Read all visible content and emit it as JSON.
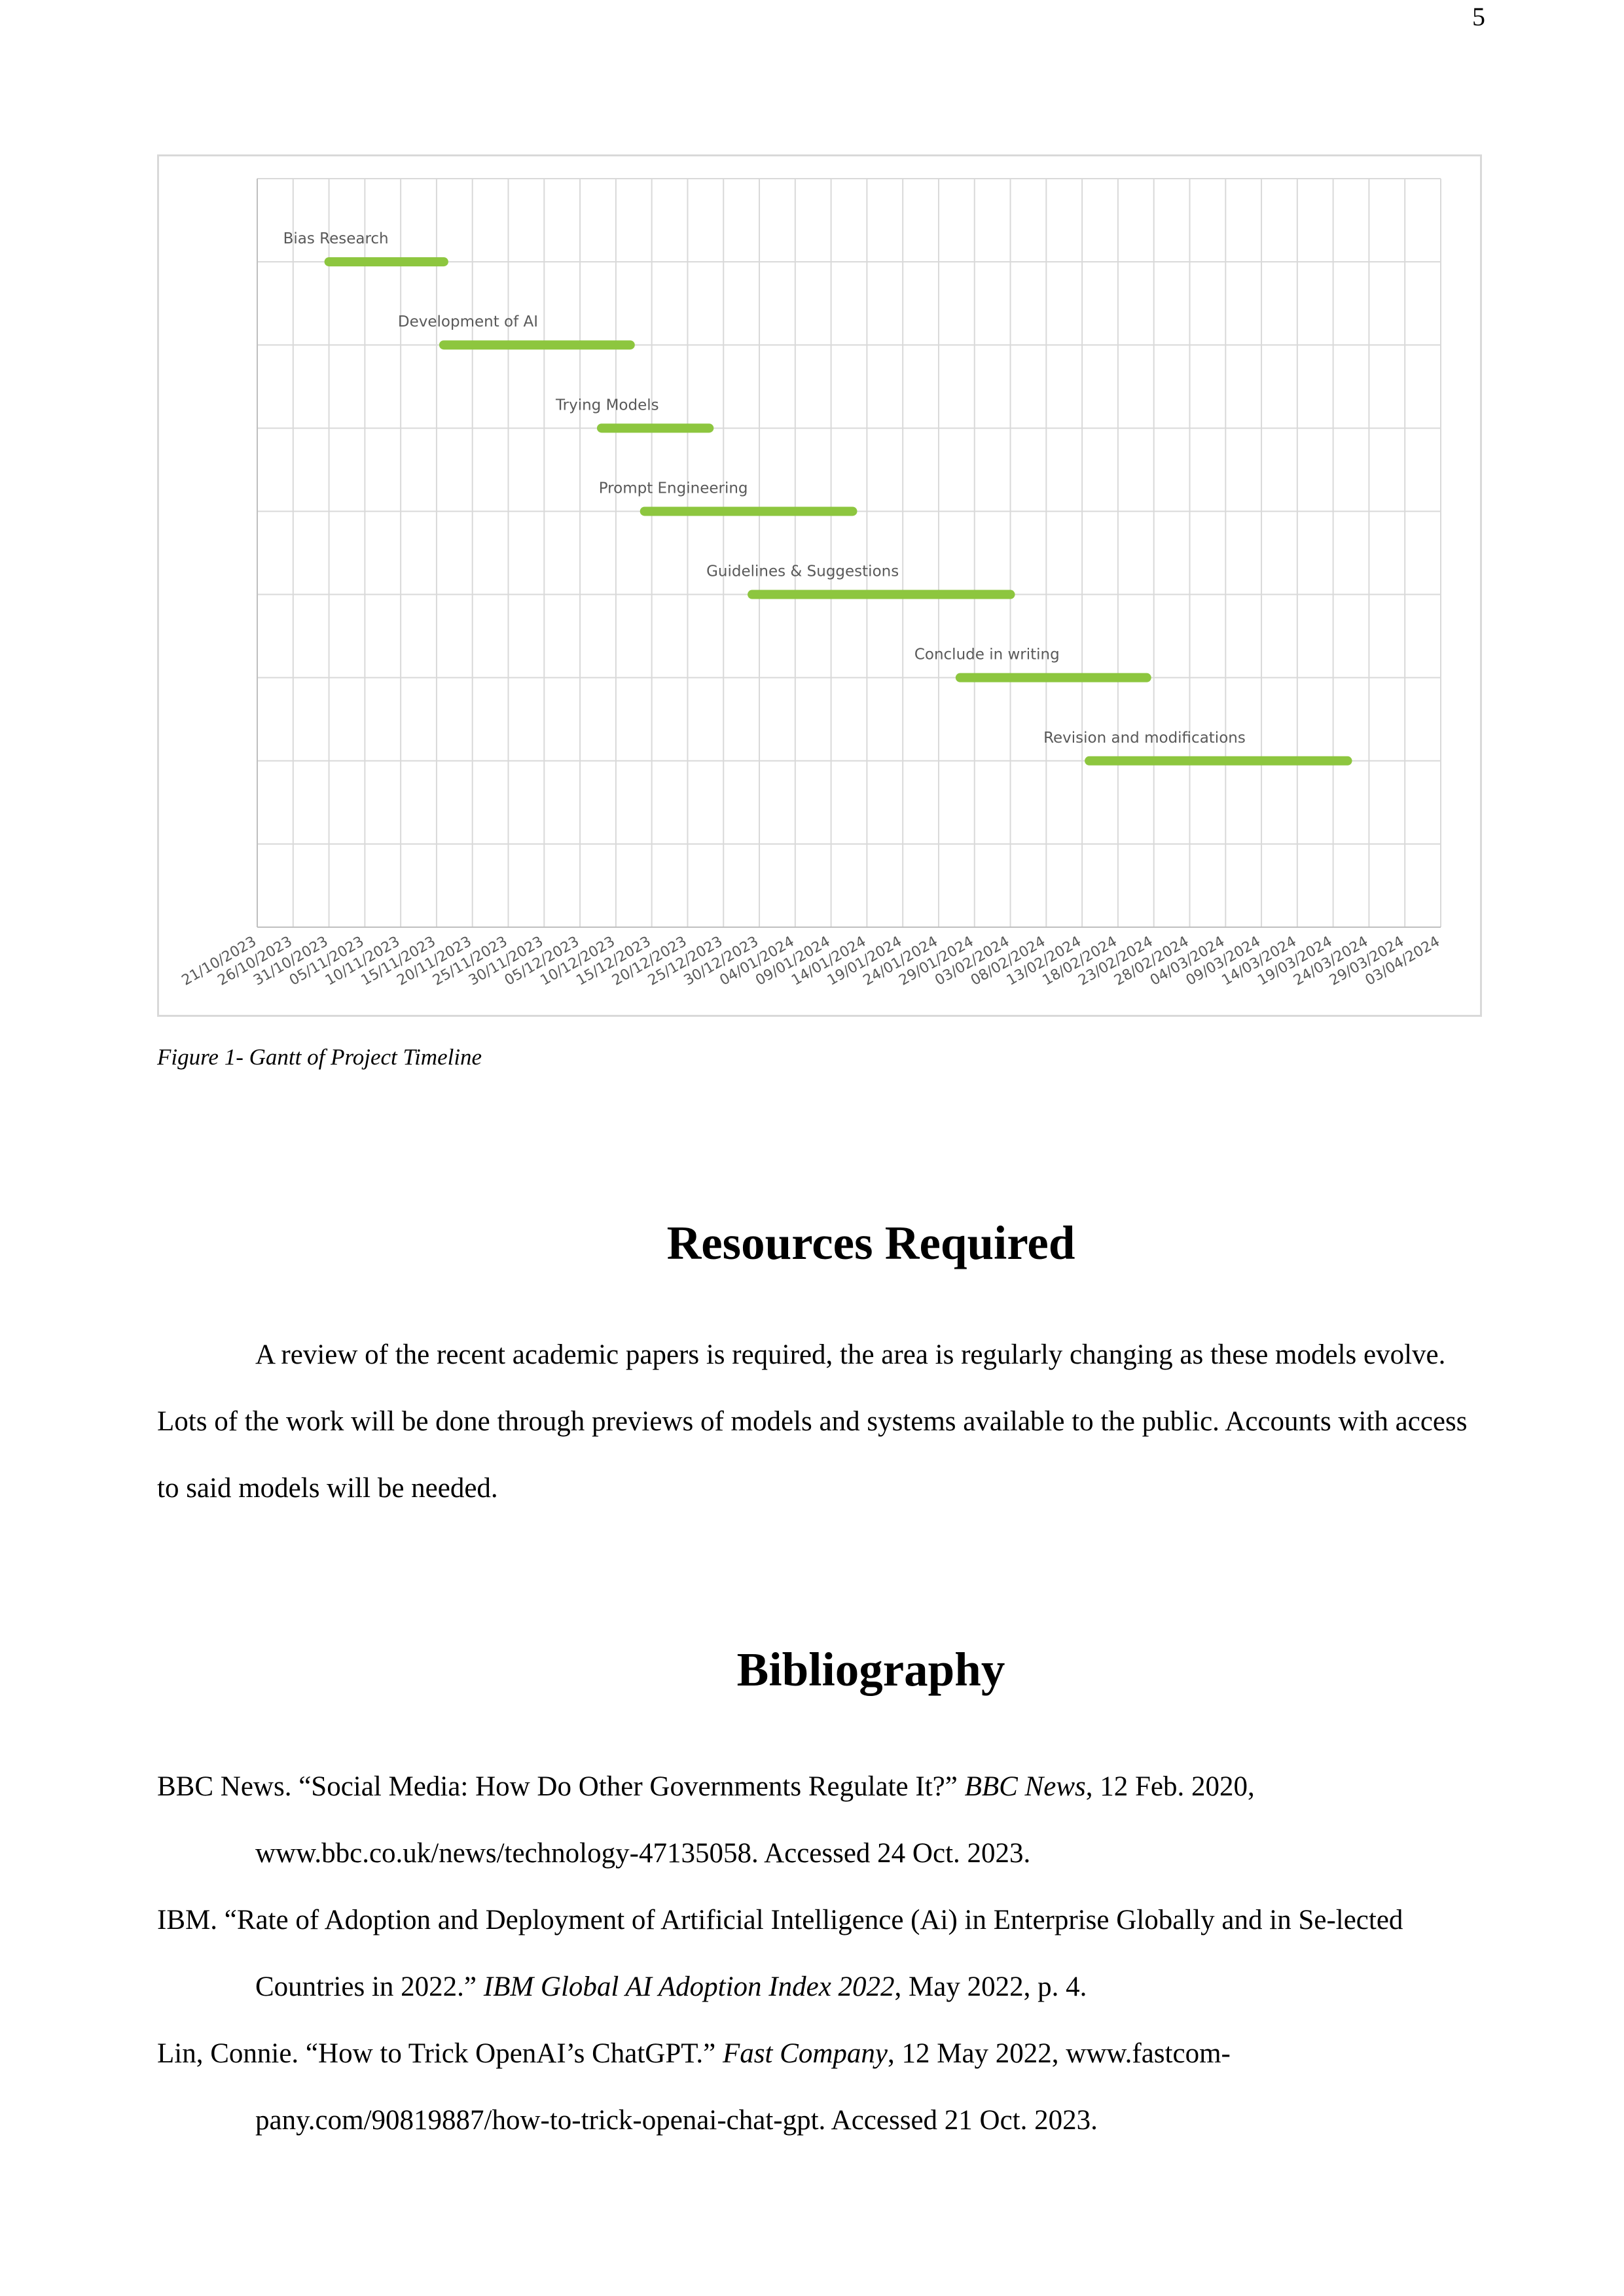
{
  "page": {
    "number": "5"
  },
  "figure": {
    "caption": "Figure 1- Gantt of Project Timeline"
  },
  "chart_data": {
    "type": "gantt",
    "title": "",
    "bar_color": "#8dc63f",
    "grid": true,
    "x_ticks": [
      "21/10/2023",
      "26/10/2023",
      "31/10/2023",
      "05/11/2023",
      "10/11/2023",
      "15/11/2023",
      "20/11/2023",
      "25/11/2023",
      "30/11/2023",
      "05/12/2023",
      "10/12/2023",
      "15/12/2023",
      "20/12/2023",
      "25/12/2023",
      "30/12/2023",
      "04/01/2024",
      "09/01/2024",
      "14/01/2024",
      "19/01/2024",
      "24/01/2024",
      "29/01/2024",
      "03/02/2024",
      "08/02/2024",
      "13/02/2024",
      "18/02/2024",
      "23/02/2024",
      "28/02/2024",
      "04/03/2024",
      "09/03/2024",
      "14/03/2024",
      "19/03/2024",
      "24/03/2024",
      "29/03/2024",
      "03/04/2024"
    ],
    "tasks": [
      {
        "name": "Bias Research",
        "start": "31/10/2023",
        "end": "16/11/2023"
      },
      {
        "name": "Development of AI",
        "start": "16/11/2023",
        "end": "12/12/2023"
      },
      {
        "name": "Trying Models",
        "start": "08/12/2023",
        "end": "23/12/2023"
      },
      {
        "name": "Prompt Engineering",
        "start": "14/12/2023",
        "end": "12/01/2024"
      },
      {
        "name": "Guidelines & Suggestions",
        "start": "29/12/2023",
        "end": "03/02/2024"
      },
      {
        "name": "Conclude in writing",
        "start": "27/01/2024",
        "end": "22/02/2024"
      },
      {
        "name": "Revision and modifications",
        "start": "14/02/2024",
        "end": "21/03/2024"
      }
    ]
  },
  "resources": {
    "heading": "Resources Required",
    "paragraph": "A review of the recent academic papers is required, the area is regularly changing as these models evolve. Lots of the work will be done through previews of models and systems available to the public. Accounts with access to said models will be needed."
  },
  "bibliography": {
    "heading": "Bibliography",
    "entries": [
      {
        "pre": "BBC News. “Social Media: How Do Other Governments Regulate It?” ",
        "italic": "BBC News",
        "post": ", 12 Feb. 2020, www.bbc.co.uk/news/technology-47135058. Accessed 24 Oct. 2023."
      },
      {
        "pre": "IBM. “Rate of Adoption and Deployment of Artificial Intelligence (Ai) in Enterprise Globally and in Se-lected Countries in 2022.” ",
        "italic": "IBM Global AI Adoption Index 2022",
        "post": ", May 2022, p. 4."
      },
      {
        "pre": "Lin, Connie. “How to Trick OpenAI’s ChatGPT.” ",
        "italic": "Fast Company",
        "post": ", 12 May 2022, www.fastcom-pany.com/90819887/how-to-trick-openai-chat-gpt. Accessed 21 Oct. 2023."
      }
    ]
  }
}
